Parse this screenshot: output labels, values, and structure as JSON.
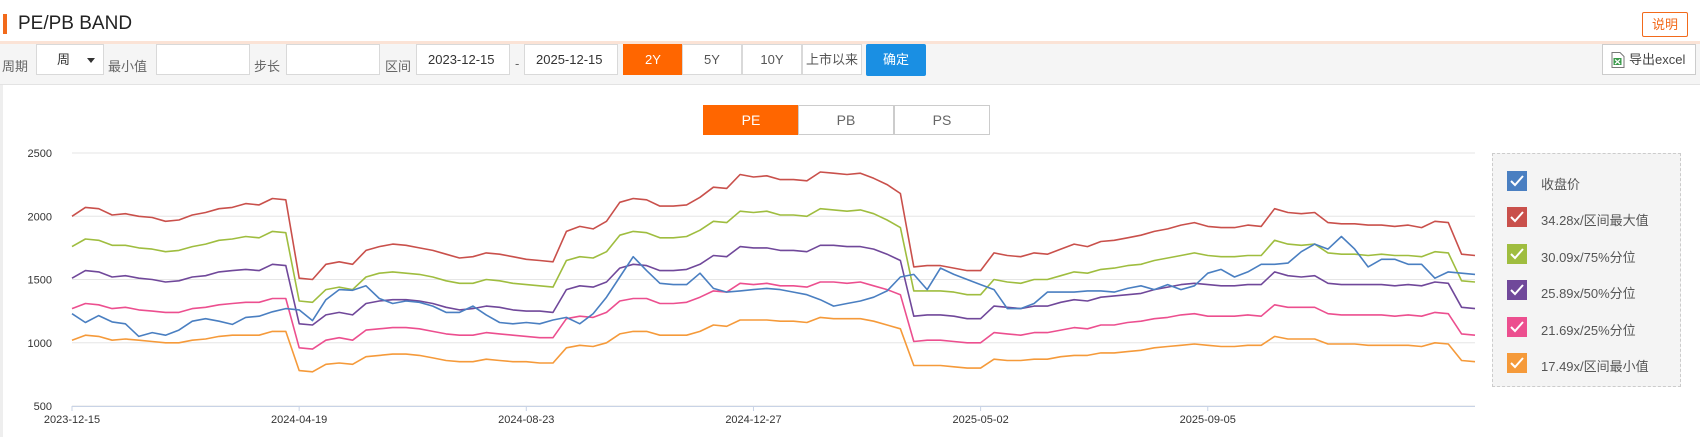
{
  "header": {
    "title": "PE/PB BAND",
    "explain_label": "说明"
  },
  "toolbar": {
    "period_label": "周期",
    "period_value": "周",
    "min_label": "最小值",
    "min_value": "",
    "step_label": "步长",
    "step_value": "",
    "range_label": "区间",
    "start_date": "2023-12-15",
    "separator": "-",
    "end_date": "2025-12-15",
    "range_buttons": [
      "2Y",
      "5Y",
      "10Y",
      "上市以来"
    ],
    "active_range": "2Y",
    "confirm_label": "确定",
    "export_label": "导出excel"
  },
  "metric_tabs": [
    "PE",
    "PB",
    "PS"
  ],
  "active_metric": "PE",
  "colors": {
    "accent": "#ff6600",
    "confirm": "#1a8fe3",
    "close": "#4a7fc1",
    "max": "#c9504b",
    "p75": "#9fbd3f",
    "p50": "#70489a",
    "p25": "#ec4f8f",
    "min": "#f59a3a"
  },
  "chart_data": {
    "type": "line",
    "title": "",
    "xlabel": "",
    "ylabel": "",
    "ylim": [
      500,
      2500
    ],
    "yticks": [
      500,
      1000,
      1500,
      2000,
      2500
    ],
    "xtick_labels": [
      "2023-12-15",
      "2024-04-19",
      "2024-08-23",
      "2024-12-27",
      "2025-05-02",
      "2025-09-05"
    ],
    "grid": true,
    "legend_position": "right",
    "band_multipliers": [
      34.28,
      30.09,
      25.89,
      21.69,
      17.49
    ],
    "series": [
      {
        "name": "收盘价",
        "color": "#4a7fc1",
        "values": [
          1230,
          1160,
          1215,
          1165,
          1150,
          1050,
          1080,
          1060,
          1100,
          1170,
          1190,
          1170,
          1145,
          1200,
          1210,
          1245,
          1270,
          1260,
          1175,
          1340,
          1420,
          1415,
          1450,
          1350,
          1310,
          1330,
          1320,
          1290,
          1240,
          1240,
          1290,
          1220,
          1160,
          1150,
          1160,
          1150,
          1180,
          1200,
          1150,
          1230,
          1360,
          1520,
          1680,
          1570,
          1470,
          1460,
          1460,
          1550,
          1430,
          1400,
          1410,
          1420,
          1430,
          1420,
          1400,
          1380,
          1340,
          1290,
          1310,
          1330,
          1360,
          1410,
          1520,
          1540,
          1420,
          1590,
          1540,
          1500,
          1460,
          1420,
          1270,
          1270,
          1310,
          1400,
          1400,
          1400,
          1410,
          1410,
          1400,
          1430,
          1450,
          1420,
          1460,
          1420,
          1450,
          1550,
          1580,
          1520,
          1560,
          1620,
          1620,
          1630,
          1720,
          1780,
          1740,
          1840,
          1740,
          1600,
          1660,
          1660,
          1620,
          1620,
          1510,
          1560,
          1550,
          1540
        ]
      },
      {
        "name": "34.28x/区间最大值",
        "color": "#c9504b",
        "values": [
          2000,
          2070,
          2060,
          2010,
          2020,
          2000,
          1990,
          1960,
          1970,
          2010,
          2030,
          2060,
          2070,
          2100,
          2090,
          2140,
          2130,
          1510,
          1500,
          1620,
          1640,
          1620,
          1730,
          1760,
          1780,
          1770,
          1750,
          1730,
          1700,
          1670,
          1680,
          1710,
          1700,
          1680,
          1660,
          1650,
          1640,
          1880,
          1920,
          1900,
          1960,
          2110,
          2140,
          2130,
          2080,
          2080,
          2090,
          2150,
          2230,
          2220,
          2330,
          2310,
          2320,
          2290,
          2290,
          2280,
          2350,
          2340,
          2330,
          2340,
          2300,
          2250,
          2180,
          1600,
          1610,
          1610,
          1590,
          1570,
          1570,
          1710,
          1690,
          1680,
          1710,
          1700,
          1740,
          1780,
          1760,
          1800,
          1810,
          1830,
          1850,
          1880,
          1900,
          1930,
          1950,
          1920,
          1910,
          1910,
          1930,
          1920,
          2060,
          2030,
          2020,
          2030,
          1950,
          1940,
          1940,
          1930,
          1930,
          1920,
          1930,
          1910,
          1960,
          1950,
          1700,
          1690
        ]
      },
      {
        "name": "30.09x/75%分位",
        "color": "#9fbd3f",
        "values": [
          1760,
          1820,
          1810,
          1770,
          1770,
          1750,
          1740,
          1720,
          1730,
          1760,
          1780,
          1810,
          1820,
          1840,
          1830,
          1880,
          1870,
          1330,
          1320,
          1420,
          1440,
          1420,
          1520,
          1550,
          1560,
          1550,
          1540,
          1520,
          1490,
          1470,
          1470,
          1500,
          1490,
          1470,
          1460,
          1450,
          1440,
          1650,
          1680,
          1670,
          1720,
          1850,
          1880,
          1870,
          1830,
          1830,
          1840,
          1890,
          1960,
          1950,
          2040,
          2030,
          2040,
          2010,
          2010,
          2000,
          2060,
          2050,
          2040,
          2050,
          2020,
          1970,
          1910,
          1410,
          1410,
          1410,
          1400,
          1380,
          1380,
          1500,
          1480,
          1470,
          1500,
          1500,
          1530,
          1560,
          1550,
          1580,
          1590,
          1610,
          1620,
          1650,
          1670,
          1690,
          1710,
          1690,
          1680,
          1680,
          1690,
          1690,
          1810,
          1780,
          1770,
          1780,
          1710,
          1700,
          1700,
          1690,
          1700,
          1690,
          1690,
          1680,
          1720,
          1710,
          1490,
          1480
        ]
      },
      {
        "name": "25.89x/50%分位",
        "color": "#70489a",
        "values": [
          1510,
          1570,
          1560,
          1520,
          1530,
          1510,
          1500,
          1480,
          1490,
          1520,
          1530,
          1560,
          1570,
          1580,
          1570,
          1620,
          1610,
          1150,
          1140,
          1220,
          1240,
          1220,
          1310,
          1330,
          1340,
          1340,
          1330,
          1310,
          1280,
          1260,
          1270,
          1290,
          1280,
          1260,
          1250,
          1250,
          1240,
          1420,
          1450,
          1440,
          1480,
          1590,
          1620,
          1610,
          1570,
          1570,
          1580,
          1620,
          1690,
          1680,
          1760,
          1750,
          1750,
          1730,
          1730,
          1720,
          1770,
          1770,
          1760,
          1760,
          1740,
          1700,
          1650,
          1210,
          1220,
          1220,
          1210,
          1190,
          1190,
          1290,
          1280,
          1270,
          1290,
          1290,
          1320,
          1340,
          1330,
          1360,
          1370,
          1380,
          1390,
          1420,
          1440,
          1460,
          1470,
          1460,
          1450,
          1450,
          1460,
          1460,
          1560,
          1530,
          1520,
          1530,
          1470,
          1460,
          1460,
          1460,
          1460,
          1450,
          1460,
          1450,
          1480,
          1470,
          1280,
          1270
        ]
      },
      {
        "name": "21.69x/25%分位",
        "color": "#ec4f8f",
        "values": [
          1270,
          1310,
          1300,
          1270,
          1280,
          1260,
          1250,
          1240,
          1240,
          1270,
          1280,
          1300,
          1310,
          1320,
          1320,
          1350,
          1350,
          960,
          950,
          1020,
          1040,
          1020,
          1100,
          1110,
          1120,
          1120,
          1110,
          1090,
          1070,
          1060,
          1060,
          1080,
          1070,
          1060,
          1050,
          1040,
          1040,
          1190,
          1210,
          1200,
          1240,
          1330,
          1350,
          1350,
          1310,
          1310,
          1320,
          1360,
          1410,
          1400,
          1470,
          1460,
          1470,
          1450,
          1450,
          1440,
          1480,
          1480,
          1470,
          1480,
          1450,
          1420,
          1380,
          1010,
          1020,
          1020,
          1010,
          1000,
          1000,
          1080,
          1070,
          1060,
          1080,
          1080,
          1100,
          1120,
          1110,
          1140,
          1140,
          1160,
          1170,
          1190,
          1200,
          1220,
          1230,
          1210,
          1210,
          1210,
          1220,
          1210,
          1300,
          1280,
          1280,
          1280,
          1230,
          1220,
          1220,
          1220,
          1220,
          1210,
          1220,
          1210,
          1240,
          1230,
          1070,
          1060
        ]
      },
      {
        "name": "17.49x/区间最小值",
        "color": "#f59a3a",
        "values": [
          1020,
          1060,
          1050,
          1020,
          1030,
          1020,
          1010,
          1000,
          1000,
          1020,
          1030,
          1050,
          1060,
          1060,
          1060,
          1090,
          1090,
          780,
          770,
          830,
          840,
          830,
          890,
          900,
          910,
          910,
          900,
          880,
          860,
          850,
          850,
          870,
          860,
          850,
          850,
          840,
          840,
          960,
          980,
          970,
          1000,
          1070,
          1090,
          1090,
          1060,
          1060,
          1060,
          1090,
          1140,
          1130,
          1180,
          1180,
          1180,
          1170,
          1170,
          1160,
          1200,
          1190,
          1190,
          1190,
          1170,
          1140,
          1110,
          820,
          820,
          820,
          810,
          800,
          800,
          870,
          860,
          860,
          870,
          870,
          890,
          900,
          900,
          920,
          920,
          930,
          940,
          960,
          970,
          980,
          990,
          980,
          970,
          970,
          980,
          980,
          1050,
          1030,
          1030,
          1030,
          990,
          990,
          990,
          980,
          980,
          980,
          980,
          970,
          1000,
          990,
          860,
          850
        ]
      }
    ]
  }
}
